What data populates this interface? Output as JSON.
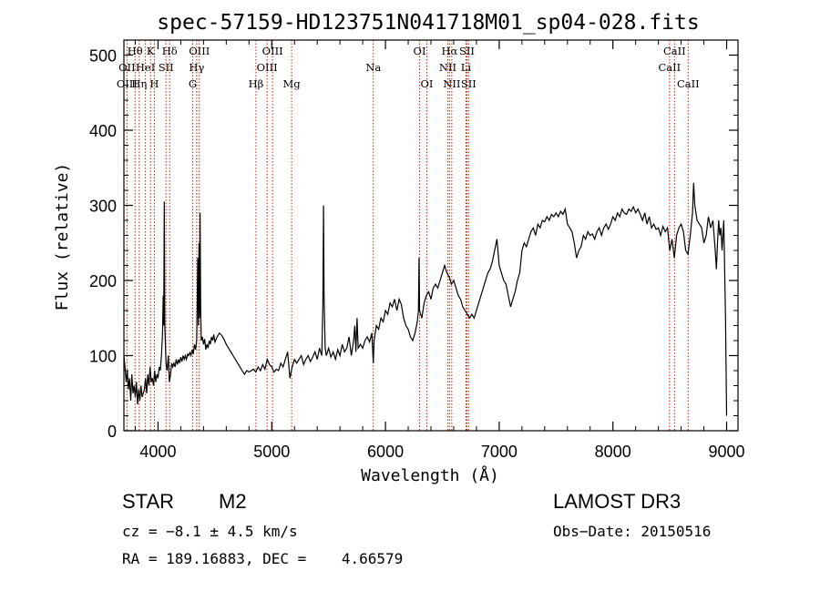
{
  "chart_data": {
    "type": "line",
    "title": "spec-57159-HD123751N041718M01_sp04-028.fits",
    "xlabel": "Wavelength (Å)",
    "ylabel": "Flux (relative)",
    "xlim": [
      3700,
      9100
    ],
    "ylim": [
      0,
      520
    ],
    "xticks": [
      4000,
      5000,
      6000,
      7000,
      8000,
      9000
    ],
    "yticks": [
      0,
      100,
      200,
      300,
      400,
      500
    ],
    "lines": [
      {
        "label": "Hθ",
        "wl": 3798,
        "row": 0
      },
      {
        "label": "OII",
        "wl": 3727,
        "row": 1
      },
      {
        "label": "OIII",
        "wl": 3727,
        "row": 2
      },
      {
        "label": "K",
        "wl": 3934,
        "row": 0
      },
      {
        "label": "HeI",
        "wl": 3889,
        "row": 1
      },
      {
        "label": "Hη",
        "wl": 3835,
        "row": 2
      },
      {
        "label": "SII",
        "wl": 4070,
        "row": 1
      },
      {
        "label": "H",
        "wl": 3968,
        "row": 2
      },
      {
        "label": "Hδ",
        "wl": 4102,
        "row": 0
      },
      {
        "label": "OIII",
        "wl": 4363,
        "row": 0
      },
      {
        "label": "Hγ",
        "wl": 4340,
        "row": 1
      },
      {
        "label": "G",
        "wl": 4305,
        "row": 2
      },
      {
        "label": "OIII",
        "wl": 5007,
        "row": 0
      },
      {
        "label": "OIII",
        "wl": 4959,
        "row": 1
      },
      {
        "label": "Hβ",
        "wl": 4861,
        "row": 2
      },
      {
        "label": "Mg",
        "wl": 5175,
        "row": 2
      },
      {
        "label": "Na",
        "wl": 5893,
        "row": 1
      },
      {
        "label": "OI",
        "wl": 6300,
        "row": 0
      },
      {
        "label": "OI",
        "wl": 6364,
        "row": 2
      },
      {
        "label": "Hα",
        "wl": 6563,
        "row": 0
      },
      {
        "label": "SII",
        "wl": 6716,
        "row": 0
      },
      {
        "label": "NII",
        "wl": 6548,
        "row": 1
      },
      {
        "label": "Li",
        "wl": 6708,
        "row": 1
      },
      {
        "label": "NII",
        "wl": 6583,
        "row": 2
      },
      {
        "label": "SII",
        "wl": 6731,
        "row": 2
      },
      {
        "label": "CaII",
        "wl": 8542,
        "row": 0
      },
      {
        "label": "CaII",
        "wl": 8498,
        "row": 1
      },
      {
        "label": "CaII",
        "wl": 8662,
        "row": 2
      }
    ],
    "spectrum": [
      [
        3700,
        100
      ],
      [
        3710,
        85
      ],
      [
        3720,
        65
      ],
      [
        3730,
        80
      ],
      [
        3740,
        55
      ],
      [
        3750,
        70
      ],
      [
        3760,
        40
      ],
      [
        3770,
        75
      ],
      [
        3780,
        50
      ],
      [
        3790,
        60
      ],
      [
        3800,
        45
      ],
      [
        3810,
        65
      ],
      [
        3820,
        35
      ],
      [
        3830,
        55
      ],
      [
        3840,
        40
      ],
      [
        3850,
        60
      ],
      [
        3860,
        45
      ],
      [
        3870,
        50
      ],
      [
        3880,
        55
      ],
      [
        3890,
        70
      ],
      [
        3900,
        50
      ],
      [
        3910,
        75
      ],
      [
        3920,
        60
      ],
      [
        3930,
        85
      ],
      [
        3940,
        65
      ],
      [
        3950,
        70
      ],
      [
        3960,
        60
      ],
      [
        3970,
        80
      ],
      [
        3980,
        65
      ],
      [
        3990,
        75
      ],
      [
        4000,
        70
      ],
      [
        4010,
        85
      ],
      [
        4020,
        80
      ],
      [
        4030,
        100
      ],
      [
        4040,
        130
      ],
      [
        4045,
        180
      ],
      [
        4050,
        140
      ],
      [
        4055,
        305
      ],
      [
        4060,
        140
      ],
      [
        4070,
        90
      ],
      [
        4080,
        80
      ],
      [
        4090,
        100
      ],
      [
        4100,
        65
      ],
      [
        4110,
        75
      ],
      [
        4120,
        90
      ],
      [
        4130,
        85
      ],
      [
        4140,
        90
      ],
      [
        4150,
        85
      ],
      [
        4160,
        95
      ],
      [
        4170,
        88
      ],
      [
        4180,
        95
      ],
      [
        4190,
        90
      ],
      [
        4200,
        98
      ],
      [
        4210,
        92
      ],
      [
        4220,
        100
      ],
      [
        4230,
        95
      ],
      [
        4240,
        100
      ],
      [
        4250,
        95
      ],
      [
        4260,
        102
      ],
      [
        4270,
        100
      ],
      [
        4280,
        104
      ],
      [
        4290,
        100
      ],
      [
        4300,
        108
      ],
      [
        4310,
        102
      ],
      [
        4320,
        115
      ],
      [
        4330,
        108
      ],
      [
        4340,
        120
      ],
      [
        4350,
        230
      ],
      [
        4355,
        140
      ],
      [
        4360,
        250
      ],
      [
        4365,
        150
      ],
      [
        4370,
        290
      ],
      [
        4375,
        160
      ],
      [
        4380,
        120
      ],
      [
        4390,
        125
      ],
      [
        4400,
        115
      ],
      [
        4410,
        122
      ],
      [
        4420,
        108
      ],
      [
        4430,
        115
      ],
      [
        4440,
        110
      ],
      [
        4450,
        120
      ],
      [
        4460,
        115
      ],
      [
        4470,
        125
      ],
      [
        4480,
        120
      ],
      [
        4490,
        128
      ],
      [
        4500,
        118
      ],
      [
        4520,
        125
      ],
      [
        4540,
        130
      ],
      [
        4560,
        127
      ],
      [
        4580,
        122
      ],
      [
        4600,
        115
      ],
      [
        4620,
        110
      ],
      [
        4640,
        105
      ],
      [
        4660,
        100
      ],
      [
        4680,
        95
      ],
      [
        4700,
        90
      ],
      [
        4720,
        85
      ],
      [
        4740,
        80
      ],
      [
        4760,
        75
      ],
      [
        4780,
        80
      ],
      [
        4800,
        78
      ],
      [
        4820,
        80
      ],
      [
        4840,
        82
      ],
      [
        4860,
        78
      ],
      [
        4880,
        85
      ],
      [
        4900,
        80
      ],
      [
        4920,
        88
      ],
      [
        4940,
        82
      ],
      [
        4960,
        95
      ],
      [
        4980,
        88
      ],
      [
        5000,
        85
      ],
      [
        5020,
        78
      ],
      [
        5040,
        82
      ],
      [
        5060,
        80
      ],
      [
        5080,
        90
      ],
      [
        5100,
        85
      ],
      [
        5120,
        95
      ],
      [
        5140,
        105
      ],
      [
        5160,
        70
      ],
      [
        5180,
        85
      ],
      [
        5200,
        95
      ],
      [
        5220,
        90
      ],
      [
        5240,
        95
      ],
      [
        5260,
        100
      ],
      [
        5280,
        88
      ],
      [
        5300,
        95
      ],
      [
        5320,
        100
      ],
      [
        5340,
        92
      ],
      [
        5360,
        98
      ],
      [
        5380,
        105
      ],
      [
        5400,
        95
      ],
      [
        5420,
        110
      ],
      [
        5440,
        100
      ],
      [
        5450,
        170
      ],
      [
        5455,
        300
      ],
      [
        5460,
        180
      ],
      [
        5470,
        110
      ],
      [
        5480,
        100
      ],
      [
        5500,
        110
      ],
      [
        5520,
        98
      ],
      [
        5540,
        105
      ],
      [
        5560,
        95
      ],
      [
        5580,
        108
      ],
      [
        5600,
        100
      ],
      [
        5620,
        115
      ],
      [
        5640,
        105
      ],
      [
        5660,
        110
      ],
      [
        5680,
        125
      ],
      [
        5700,
        100
      ],
      [
        5720,
        120
      ],
      [
        5730,
        140
      ],
      [
        5740,
        105
      ],
      [
        5750,
        150
      ],
      [
        5760,
        110
      ],
      [
        5780,
        115
      ],
      [
        5800,
        110
      ],
      [
        5820,
        120
      ],
      [
        5840,
        125
      ],
      [
        5860,
        118
      ],
      [
        5880,
        130
      ],
      [
        5893,
        90
      ],
      [
        5900,
        120
      ],
      [
        5920,
        140
      ],
      [
        5940,
        135
      ],
      [
        5960,
        150
      ],
      [
        5980,
        145
      ],
      [
        6000,
        160
      ],
      [
        6020,
        155
      ],
      [
        6040,
        170
      ],
      [
        6060,
        165
      ],
      [
        6080,
        175
      ],
      [
        6100,
        160
      ],
      [
        6120,
        175
      ],
      [
        6140,
        168
      ],
      [
        6160,
        150
      ],
      [
        6180,
        140
      ],
      [
        6200,
        135
      ],
      [
        6220,
        125
      ],
      [
        6240,
        120
      ],
      [
        6260,
        130
      ],
      [
        6280,
        145
      ],
      [
        6290,
        160
      ],
      [
        6295,
        230
      ],
      [
        6300,
        160
      ],
      [
        6320,
        150
      ],
      [
        6340,
        170
      ],
      [
        6360,
        180
      ],
      [
        6380,
        185
      ],
      [
        6400,
        175
      ],
      [
        6420,
        190
      ],
      [
        6440,
        195
      ],
      [
        6460,
        190
      ],
      [
        6480,
        200
      ],
      [
        6500,
        210
      ],
      [
        6520,
        220
      ],
      [
        6540,
        210
      ],
      [
        6560,
        205
      ],
      [
        6580,
        195
      ],
      [
        6600,
        200
      ],
      [
        6620,
        190
      ],
      [
        6640,
        180
      ],
      [
        6660,
        175
      ],
      [
        6680,
        165
      ],
      [
        6700,
        160
      ],
      [
        6720,
        155
      ],
      [
        6740,
        150
      ],
      [
        6760,
        155
      ],
      [
        6780,
        150
      ],
      [
        6800,
        160
      ],
      [
        6820,
        170
      ],
      [
        6840,
        180
      ],
      [
        6860,
        190
      ],
      [
        6880,
        200
      ],
      [
        6900,
        210
      ],
      [
        6920,
        215
      ],
      [
        6940,
        225
      ],
      [
        6960,
        240
      ],
      [
        6980,
        255
      ],
      [
        7000,
        220
      ],
      [
        7020,
        210
      ],
      [
        7040,
        200
      ],
      [
        7060,
        195
      ],
      [
        7080,
        180
      ],
      [
        7100,
        165
      ],
      [
        7120,
        175
      ],
      [
        7140,
        185
      ],
      [
        7160,
        200
      ],
      [
        7180,
        210
      ],
      [
        7200,
        240
      ],
      [
        7220,
        250
      ],
      [
        7240,
        245
      ],
      [
        7260,
        255
      ],
      [
        7280,
        265
      ],
      [
        7300,
        270
      ],
      [
        7320,
        260
      ],
      [
        7340,
        275
      ],
      [
        7360,
        270
      ],
      [
        7380,
        280
      ],
      [
        7400,
        278
      ],
      [
        7420,
        285
      ],
      [
        7440,
        280
      ],
      [
        7460,
        288
      ],
      [
        7480,
        285
      ],
      [
        7500,
        290
      ],
      [
        7520,
        285
      ],
      [
        7540,
        292
      ],
      [
        7560,
        288
      ],
      [
        7580,
        295
      ],
      [
        7600,
        275
      ],
      [
        7620,
        270
      ],
      [
        7640,
        265
      ],
      [
        7660,
        250
      ],
      [
        7680,
        230
      ],
      [
        7700,
        240
      ],
      [
        7720,
        245
      ],
      [
        7740,
        260
      ],
      [
        7760,
        255
      ],
      [
        7780,
        265
      ],
      [
        7800,
        260
      ],
      [
        7820,
        262
      ],
      [
        7840,
        255
      ],
      [
        7860,
        265
      ],
      [
        7880,
        270
      ],
      [
        7900,
        260
      ],
      [
        7920,
        270
      ],
      [
        7940,
        275
      ],
      [
        7960,
        268
      ],
      [
        7980,
        275
      ],
      [
        8000,
        285
      ],
      [
        8020,
        280
      ],
      [
        8040,
        290
      ],
      [
        8060,
        285
      ],
      [
        8080,
        295
      ],
      [
        8100,
        290
      ],
      [
        8120,
        288
      ],
      [
        8140,
        295
      ],
      [
        8160,
        292
      ],
      [
        8180,
        298
      ],
      [
        8200,
        290
      ],
      [
        8220,
        295
      ],
      [
        8240,
        288
      ],
      [
        8260,
        280
      ],
      [
        8280,
        290
      ],
      [
        8300,
        275
      ],
      [
        8320,
        285
      ],
      [
        8340,
        270
      ],
      [
        8360,
        275
      ],
      [
        8380,
        268
      ],
      [
        8400,
        270
      ],
      [
        8420,
        260
      ],
      [
        8440,
        272
      ],
      [
        8460,
        265
      ],
      [
        8480,
        270
      ],
      [
        8500,
        240
      ],
      [
        8520,
        255
      ],
      [
        8540,
        230
      ],
      [
        8560,
        260
      ],
      [
        8580,
        270
      ],
      [
        8600,
        275
      ],
      [
        8620,
        265
      ],
      [
        8640,
        240
      ],
      [
        8660,
        235
      ],
      [
        8680,
        260
      ],
      [
        8700,
        290
      ],
      [
        8710,
        330
      ],
      [
        8720,
        300
      ],
      [
        8740,
        280
      ],
      [
        8760,
        275
      ],
      [
        8780,
        270
      ],
      [
        8800,
        250
      ],
      [
        8820,
        260
      ],
      [
        8840,
        285
      ],
      [
        8860,
        270
      ],
      [
        8880,
        280
      ],
      [
        8900,
        240
      ],
      [
        8910,
        215
      ],
      [
        8920,
        250
      ],
      [
        8930,
        280
      ],
      [
        8940,
        260
      ],
      [
        8950,
        270
      ],
      [
        8960,
        240
      ],
      [
        8975,
        280
      ],
      [
        8990,
        150
      ],
      [
        9000,
        20
      ]
    ]
  },
  "info": {
    "obj_class": "STAR",
    "subclass": "M2",
    "survey": "LAMOST DR3",
    "cz": "cz = −8.1 ± 4.5 km/s",
    "obs_date": "Obs−Date: 20150516",
    "coords": "RA = 189.16883, DEC =    4.66579"
  }
}
